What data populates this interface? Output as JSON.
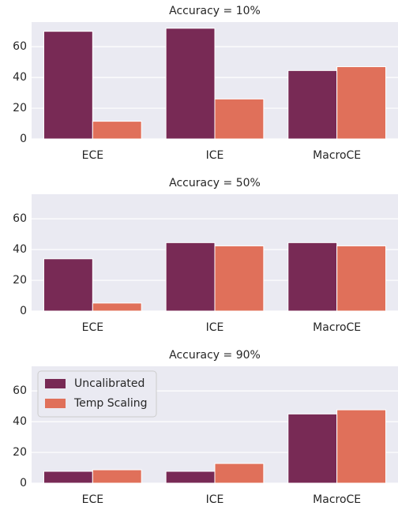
{
  "chart_data": [
    {
      "type": "bar",
      "title": "Accuracy = 10%",
      "categories": [
        "ECE",
        "ICE",
        "MacroCE"
      ],
      "series": [
        {
          "name": "Uncalibrated",
          "color": "#782a55",
          "values": [
            70,
            72,
            44.5
          ]
        },
        {
          "name": "Temp Scaling",
          "color": "#e0705a",
          "values": [
            11.5,
            26,
            47
          ]
        }
      ],
      "ylim": [
        0,
        76
      ],
      "yticks": [
        0,
        20,
        40,
        60
      ],
      "grid": true
    },
    {
      "type": "bar",
      "title": "Accuracy = 50%",
      "categories": [
        "ECE",
        "ICE",
        "MacroCE"
      ],
      "series": [
        {
          "name": "Uncalibrated",
          "color": "#782a55",
          "values": [
            34,
            44.5,
            44.5
          ]
        },
        {
          "name": "Temp Scaling",
          "color": "#e0705a",
          "values": [
            5.2,
            42.4,
            42.4
          ]
        }
      ],
      "ylim": [
        0,
        76
      ],
      "yticks": [
        0,
        20,
        40,
        60
      ],
      "grid": true
    },
    {
      "type": "bar",
      "title": "Accuracy = 90%",
      "categories": [
        "ECE",
        "ICE",
        "MacroCE"
      ],
      "series": [
        {
          "name": "Uncalibrated",
          "color": "#782a55",
          "values": [
            7.7,
            7.7,
            45
          ]
        },
        {
          "name": "Temp Scaling",
          "color": "#e0705a",
          "values": [
            8.7,
            12.8,
            47.7
          ]
        }
      ],
      "ylim": [
        0,
        76
      ],
      "yticks": [
        0,
        20,
        40,
        60
      ],
      "grid": true,
      "legend": "upper left"
    }
  ]
}
